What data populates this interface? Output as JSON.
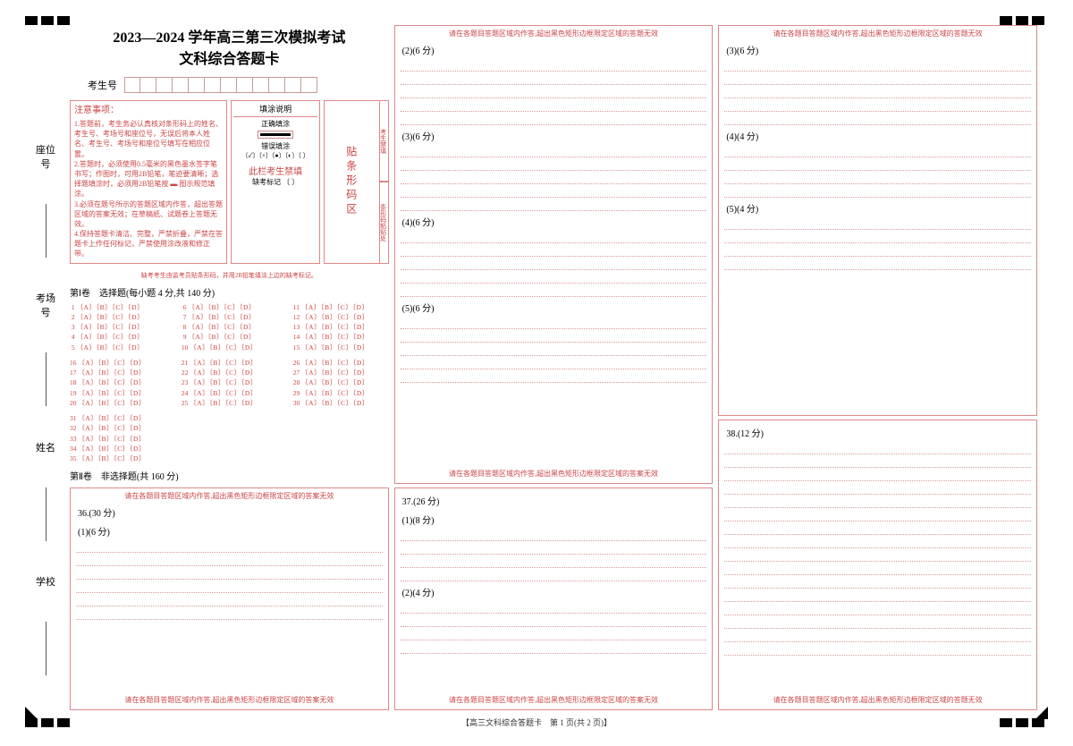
{
  "header": {
    "title": "2023—2024 学年高三第三次模拟考试",
    "subtitle": "文科综合答题卡",
    "examinee_label": "考生号"
  },
  "notice": {
    "heading": "注意事项：",
    "items": [
      "1.答题前，考生务必认真核对条形码上的姓名、考生号、考场号和座位号，无误后将本人姓名、考生号、考场号和座位号填写在相应位置。",
      "2.答题时，必须使用0.5毫米的黑色墨水签字笔书写；作图时，可用2B铅笔，笔迹要清晰；选择题填涂时，必须用2B铅笔按 ▬ 图示规范填涂。",
      "3.必须在题号所示的答题区域内作答，超出答题区域的答案无效；在草稿纸、试题卷上答题无效。",
      "4.保持答题卡清洁、完整，严禁折叠，严禁在答题卡上作任何标记，严禁使用涂改液和修正带。"
    ],
    "fill_heading": "填涂说明",
    "correct_label": "正确填涂",
    "wrong_label": "错误填涂",
    "wrong_examples": "〔✓〕〔×〕〔●〕〔◐〕〔 〕",
    "forbidden": "此栏考生禁填",
    "absent_label": "缺考标记 〔 〕",
    "absent_note": "缺考考生由监考员贴条形码，并用2B铅笔填涂上边的缺考标记。",
    "barcode": "贴条形码区",
    "barcode_side1": "考生禁填",
    "barcode_side2": "条形码粘贴处"
  },
  "section1": {
    "heading": "第Ⅰ卷　选择题(每小题 4 分,共 140 分)",
    "option_str": "〔A〕〔B〕〔C〕〔D〕"
  },
  "section2": {
    "heading": "第Ⅱ卷　非选择题(共 160 分)",
    "warn": "请在各题目答题区域内作答,超出黑色矩形边框限定区域的答案无效",
    "warn2": "请在各题目答题区域内作答,超出黑色矩形边框限定区域的答题无效"
  },
  "questions": {
    "q36": "36.(30 分)",
    "q36_1": "(1)(6 分)",
    "q36_2": "(2)(6 分)",
    "q36_3": "(3)(6 分)",
    "q36_4": "(4)(6 分)",
    "q36_5": "(5)(6 分)",
    "q37": "37.(26 分)",
    "q37_1": "(1)(8 分)",
    "q37_2": "(2)(4 分)",
    "q37_3": "(3)(6 分)",
    "q37_4": "(4)(4 分)",
    "q37_5": "(5)(4 分)",
    "q38": "38.(12 分)"
  },
  "side": {
    "seat": "座位号",
    "room": "考场号",
    "name": "姓名",
    "school": "学校"
  },
  "footer": "【高三文科综合答题卡　第 1 页(共 2 页)】",
  "colors": {
    "red": "#c44",
    "line": "#d99",
    "border": "#d88"
  }
}
